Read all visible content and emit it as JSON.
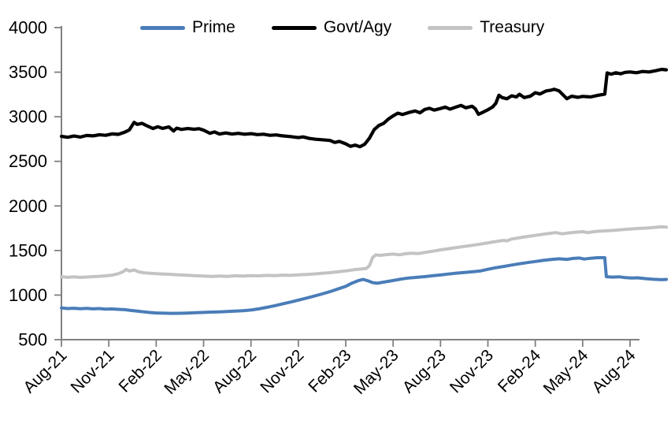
{
  "chart_data": {
    "type": "line",
    "title": "",
    "xlabel": "",
    "ylabel": "",
    "legend_position": "top",
    "grid": false,
    "axis_color": "#808080",
    "tick_label_color": "#000000",
    "ylim": [
      500,
      4000
    ],
    "y_ticks": [
      500,
      1000,
      1500,
      2000,
      2500,
      3000,
      3500,
      4000
    ],
    "x_tick_months": [
      0,
      3,
      6,
      9,
      12,
      15,
      18,
      21,
      24,
      27,
      30,
      33,
      36
    ],
    "x_tick_labels": [
      "Aug-21",
      "Nov-21",
      "Feb-22",
      "May-22",
      "Aug-22",
      "Nov-22",
      "Feb-23",
      "May-23",
      "Aug-23",
      "Nov-23",
      "Feb-24",
      "May-24",
      "Aug-24"
    ],
    "x_domain_months": [
      0,
      38.3
    ],
    "series": [
      {
        "name": "Prime",
        "color": "#4a7db8",
        "width": 4,
        "points": [
          [
            0,
            855
          ],
          [
            0.4,
            849
          ],
          [
            0.8,
            853
          ],
          [
            1.2,
            847
          ],
          [
            1.6,
            851
          ],
          [
            2,
            846
          ],
          [
            2.4,
            849
          ],
          [
            2.8,
            843
          ],
          [
            3.2,
            845
          ],
          [
            3.6,
            840
          ],
          [
            4,
            837
          ],
          [
            4.4,
            828
          ],
          [
            4.8,
            820
          ],
          [
            5.2,
            812
          ],
          [
            5.6,
            805
          ],
          [
            6,
            800
          ],
          [
            6.5,
            797
          ],
          [
            7,
            795
          ],
          [
            7.5,
            796
          ],
          [
            8,
            799
          ],
          [
            8.5,
            802
          ],
          [
            9,
            806
          ],
          [
            9.5,
            809
          ],
          [
            10,
            812
          ],
          [
            10.5,
            816
          ],
          [
            11,
            820
          ],
          [
            11.5,
            825
          ],
          [
            12,
            832
          ],
          [
            12.5,
            846
          ],
          [
            13,
            862
          ],
          [
            13.5,
            881
          ],
          [
            14,
            901
          ],
          [
            14.5,
            922
          ],
          [
            15,
            944
          ],
          [
            15.5,
            966
          ],
          [
            16,
            989
          ],
          [
            16.5,
            1013
          ],
          [
            17,
            1038
          ],
          [
            17.5,
            1068
          ],
          [
            18,
            1098
          ],
          [
            18.4,
            1135
          ],
          [
            18.8,
            1162
          ],
          [
            19.1,
            1176
          ],
          [
            19.4,
            1160
          ],
          [
            19.7,
            1140
          ],
          [
            20,
            1133
          ],
          [
            20.4,
            1145
          ],
          [
            20.8,
            1158
          ],
          [
            21.2,
            1170
          ],
          [
            21.6,
            1182
          ],
          [
            22,
            1192
          ],
          [
            22.5,
            1199
          ],
          [
            23,
            1207
          ],
          [
            23.5,
            1217
          ],
          [
            24,
            1226
          ],
          [
            24.5,
            1236
          ],
          [
            25,
            1246
          ],
          [
            25.5,
            1254
          ],
          [
            26,
            1261
          ],
          [
            26.5,
            1270
          ],
          [
            27,
            1289
          ],
          [
            27.5,
            1307
          ],
          [
            28,
            1321
          ],
          [
            28.5,
            1337
          ],
          [
            29,
            1351
          ],
          [
            29.5,
            1364
          ],
          [
            30,
            1377
          ],
          [
            30.5,
            1389
          ],
          [
            31,
            1399
          ],
          [
            31.5,
            1407
          ],
          [
            32,
            1401
          ],
          [
            32.4,
            1411
          ],
          [
            32.8,
            1416
          ],
          [
            33.1,
            1404
          ],
          [
            33.5,
            1413
          ],
          [
            34,
            1420
          ],
          [
            34.4,
            1419
          ],
          [
            34.5,
            1206
          ],
          [
            34.9,
            1202
          ],
          [
            35.3,
            1205
          ],
          [
            35.7,
            1196
          ],
          [
            36.1,
            1191
          ],
          [
            36.5,
            1194
          ],
          [
            37,
            1184
          ],
          [
            37.5,
            1177
          ],
          [
            38,
            1173
          ],
          [
            38.3,
            1176
          ]
        ]
      },
      {
        "name": "Govt/Agy",
        "color": "#000000",
        "width": 4.2,
        "points": [
          [
            0,
            2780
          ],
          [
            0.4,
            2770
          ],
          [
            0.8,
            2784
          ],
          [
            1.2,
            2772
          ],
          [
            1.6,
            2790
          ],
          [
            2,
            2786
          ],
          [
            2.4,
            2798
          ],
          [
            2.8,
            2792
          ],
          [
            3.2,
            2808
          ],
          [
            3.6,
            2802
          ],
          [
            4,
            2826
          ],
          [
            4.3,
            2852
          ],
          [
            4.6,
            2937
          ],
          [
            4.8,
            2915
          ],
          [
            5.1,
            2926
          ],
          [
            5.4,
            2900
          ],
          [
            5.8,
            2868
          ],
          [
            6.1,
            2888
          ],
          [
            6.4,
            2870
          ],
          [
            6.8,
            2886
          ],
          [
            7.1,
            2840
          ],
          [
            7.3,
            2872
          ],
          [
            7.6,
            2858
          ],
          [
            8,
            2868
          ],
          [
            8.4,
            2860
          ],
          [
            8.7,
            2866
          ],
          [
            9,
            2850
          ],
          [
            9.4,
            2815
          ],
          [
            9.7,
            2830
          ],
          [
            10,
            2806
          ],
          [
            10.4,
            2818
          ],
          [
            10.8,
            2806
          ],
          [
            11.2,
            2814
          ],
          [
            11.6,
            2804
          ],
          [
            12,
            2810
          ],
          [
            12.4,
            2800
          ],
          [
            12.8,
            2804
          ],
          [
            13.2,
            2792
          ],
          [
            13.6,
            2796
          ],
          [
            14,
            2786
          ],
          [
            14.5,
            2778
          ],
          [
            15,
            2766
          ],
          [
            15.3,
            2774
          ],
          [
            15.7,
            2756
          ],
          [
            16.1,
            2748
          ],
          [
            16.5,
            2742
          ],
          [
            17,
            2734
          ],
          [
            17.3,
            2712
          ],
          [
            17.6,
            2724
          ],
          [
            18,
            2696
          ],
          [
            18.3,
            2668
          ],
          [
            18.6,
            2682
          ],
          [
            18.9,
            2664
          ],
          [
            19.2,
            2692
          ],
          [
            19.5,
            2760
          ],
          [
            19.8,
            2855
          ],
          [
            20.1,
            2902
          ],
          [
            20.4,
            2925
          ],
          [
            20.7,
            2975
          ],
          [
            21,
            3010
          ],
          [
            21.3,
            3040
          ],
          [
            21.6,
            3025
          ],
          [
            22,
            3048
          ],
          [
            22.4,
            3065
          ],
          [
            22.7,
            3045
          ],
          [
            23,
            3082
          ],
          [
            23.3,
            3095
          ],
          [
            23.6,
            3075
          ],
          [
            24,
            3092
          ],
          [
            24.3,
            3108
          ],
          [
            24.6,
            3085
          ],
          [
            25,
            3110
          ],
          [
            25.3,
            3128
          ],
          [
            25.6,
            3100
          ],
          [
            26,
            3118
          ],
          [
            26.2,
            3090
          ],
          [
            26.4,
            3028
          ],
          [
            26.7,
            3052
          ],
          [
            27,
            3078
          ],
          [
            27.3,
            3110
          ],
          [
            27.5,
            3150
          ],
          [
            27.7,
            3242
          ],
          [
            27.9,
            3215
          ],
          [
            28.2,
            3202
          ],
          [
            28.5,
            3235
          ],
          [
            28.8,
            3222
          ],
          [
            29,
            3252
          ],
          [
            29.3,
            3215
          ],
          [
            29.7,
            3232
          ],
          [
            30,
            3270
          ],
          [
            30.3,
            3255
          ],
          [
            30.7,
            3290
          ],
          [
            31,
            3298
          ],
          [
            31.2,
            3308
          ],
          [
            31.5,
            3290
          ],
          [
            32,
            3203
          ],
          [
            32.3,
            3230
          ],
          [
            32.7,
            3218
          ],
          [
            33,
            3228
          ],
          [
            33.5,
            3222
          ],
          [
            34,
            3242
          ],
          [
            34.4,
            3254
          ],
          [
            34.55,
            3492
          ],
          [
            34.8,
            3478
          ],
          [
            35.1,
            3494
          ],
          [
            35.4,
            3482
          ],
          [
            35.7,
            3498
          ],
          [
            36,
            3502
          ],
          [
            36.4,
            3494
          ],
          [
            36.8,
            3508
          ],
          [
            37.2,
            3502
          ],
          [
            37.6,
            3516
          ],
          [
            38,
            3532
          ],
          [
            38.3,
            3526
          ]
        ]
      },
      {
        "name": "Treasury",
        "color": "#c3c3c3",
        "width": 4,
        "points": [
          [
            0,
            1206
          ],
          [
            0.4,
            1199
          ],
          [
            0.8,
            1204
          ],
          [
            1.2,
            1198
          ],
          [
            1.6,
            1203
          ],
          [
            2,
            1207
          ],
          [
            2.4,
            1211
          ],
          [
            2.8,
            1216
          ],
          [
            3.2,
            1224
          ],
          [
            3.6,
            1240
          ],
          [
            3.9,
            1262
          ],
          [
            4.1,
            1288
          ],
          [
            4.3,
            1270
          ],
          [
            4.6,
            1282
          ],
          [
            4.9,
            1260
          ],
          [
            5.2,
            1250
          ],
          [
            5.6,
            1244
          ],
          [
            6,
            1240
          ],
          [
            6.5,
            1235
          ],
          [
            7,
            1231
          ],
          [
            7.5,
            1226
          ],
          [
            8,
            1222
          ],
          [
            8.5,
            1217
          ],
          [
            9,
            1213
          ],
          [
            9.5,
            1209
          ],
          [
            10,
            1214
          ],
          [
            10.5,
            1210
          ],
          [
            11,
            1217
          ],
          [
            11.5,
            1213
          ],
          [
            12,
            1219
          ],
          [
            12.5,
            1216
          ],
          [
            13,
            1221
          ],
          [
            13.5,
            1218
          ],
          [
            14,
            1224
          ],
          [
            14.5,
            1221
          ],
          [
            15,
            1227
          ],
          [
            15.5,
            1231
          ],
          [
            16,
            1237
          ],
          [
            16.5,
            1244
          ],
          [
            17,
            1251
          ],
          [
            17.5,
            1261
          ],
          [
            18,
            1271
          ],
          [
            18.5,
            1284
          ],
          [
            19,
            1294
          ],
          [
            19.3,
            1299
          ],
          [
            19.5,
            1330
          ],
          [
            19.7,
            1420
          ],
          [
            19.9,
            1452
          ],
          [
            20.2,
            1446
          ],
          [
            20.5,
            1452
          ],
          [
            21,
            1460
          ],
          [
            21.4,
            1452
          ],
          [
            21.8,
            1464
          ],
          [
            22.2,
            1470
          ],
          [
            22.6,
            1466
          ],
          [
            23,
            1478
          ],
          [
            23.5,
            1492
          ],
          [
            24,
            1508
          ],
          [
            24.5,
            1520
          ],
          [
            25,
            1533
          ],
          [
            25.5,
            1546
          ],
          [
            26,
            1558
          ],
          [
            26.5,
            1571
          ],
          [
            27,
            1586
          ],
          [
            27.5,
            1600
          ],
          [
            28,
            1614
          ],
          [
            28.2,
            1608
          ],
          [
            28.5,
            1629
          ],
          [
            29,
            1644
          ],
          [
            29.5,
            1657
          ],
          [
            30,
            1669
          ],
          [
            30.5,
            1683
          ],
          [
            31,
            1694
          ],
          [
            31.3,
            1700
          ],
          [
            31.7,
            1687
          ],
          [
            32.1,
            1697
          ],
          [
            32.5,
            1704
          ],
          [
            33,
            1711
          ],
          [
            33.3,
            1701
          ],
          [
            33.7,
            1711
          ],
          [
            34,
            1716
          ],
          [
            34.5,
            1721
          ],
          [
            35,
            1727
          ],
          [
            35.5,
            1734
          ],
          [
            36,
            1741
          ],
          [
            36.5,
            1747
          ],
          [
            37,
            1751
          ],
          [
            37.5,
            1759
          ],
          [
            38,
            1766
          ],
          [
            38.3,
            1761
          ]
        ]
      }
    ]
  }
}
